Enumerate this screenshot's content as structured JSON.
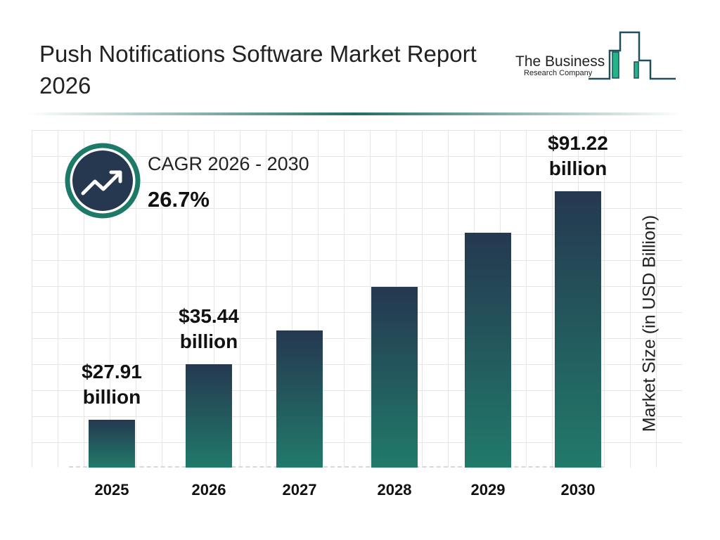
{
  "header": {
    "title": "Push Notifications Software Market Report 2026"
  },
  "logo": {
    "line1": "The Business",
    "line2": "Research Company"
  },
  "cagr": {
    "label": "CAGR 2026 - 2030",
    "value": "26.7%",
    "icon": "trending-up-icon"
  },
  "colors": {
    "bar_top": "#253850",
    "bar_bottom": "#217a6a",
    "accent": "#1e7a68"
  },
  "chart_data": {
    "type": "bar",
    "title": "",
    "ylabel": "Market Size (in USD Billion)",
    "categories": [
      "2025",
      "2026",
      "2027",
      "2028",
      "2029",
      "2030"
    ],
    "values": [
      27.91,
      35.44,
      44.9,
      56.9,
      72.0,
      91.22
    ],
    "data_labels": [
      {
        "index": 0,
        "line1": "$27.91",
        "line2": "billion"
      },
      {
        "index": 1,
        "line1": "$35.44",
        "line2": "billion"
      },
      {
        "index": 5,
        "line1": "$91.22",
        "line2": "billion"
      }
    ],
    "grid": true
  }
}
